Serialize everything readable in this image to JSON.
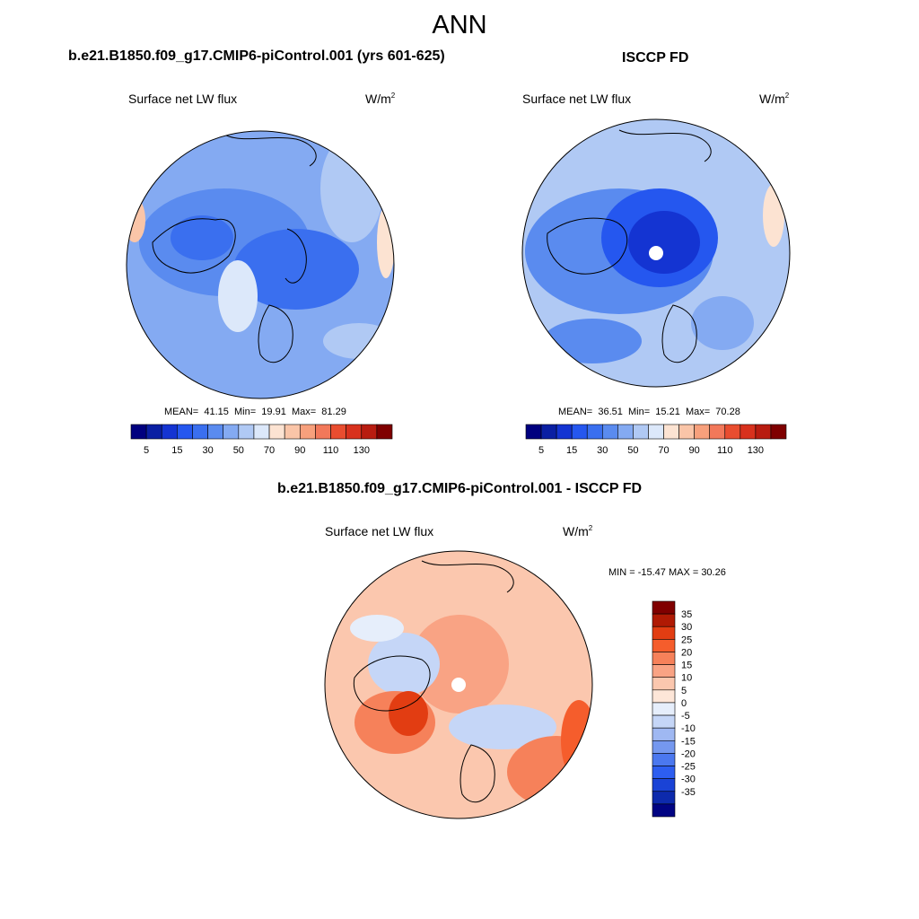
{
  "title": "ANN",
  "colors": {
    "sequential": [
      "#00007f",
      "#0a1fa3",
      "#1434d2",
      "#2557ef",
      "#3a6fef",
      "#5a8bef",
      "#84aaf2",
      "#b0c9f4",
      "#dce8fa",
      "#fce3d2",
      "#fac5a8",
      "#f7a07c",
      "#f2785a",
      "#e94d2f",
      "#d8311d",
      "#b81c10",
      "#7f0000"
    ],
    "diverging": [
      "#800000",
      "#b01a04",
      "#e23d12",
      "#f55d2c",
      "#f6815a",
      "#f9a384",
      "#fbc7ae",
      "#fde6d8",
      "#e6eefb",
      "#c5d6f7",
      "#9fb8f2",
      "#7598ef",
      "#4b78ef",
      "#2d5ef0",
      "#1a43d6",
      "#0d2aac",
      "#010483"
    ],
    "land_outline": "#000000"
  },
  "panels": {
    "top_left": {
      "case_title": "b.e21.B1850.f09_g17.CMIP6-piControl.001 (yrs 601-625)",
      "variable": "Surface net LW flux",
      "units": "W/m",
      "units_sup": "2",
      "mean_label": "MEAN=",
      "mean": "41.15",
      "min_label": "Min=",
      "min": "19.91",
      "max_label": "Max=",
      "max": "81.29",
      "colorbar_ticks": [
        "5",
        "15",
        "30",
        "50",
        "70",
        "90",
        "110",
        "130"
      ]
    },
    "top_right": {
      "case_title": "ISCCP FD",
      "variable": "Surface net LW flux",
      "units": "W/m",
      "units_sup": "2",
      "mean_label": "MEAN=",
      "mean": "36.51",
      "min_label": "Min=",
      "min": "15.21",
      "max_label": "Max=",
      "max": "70.28",
      "colorbar_ticks": [
        "5",
        "15",
        "30",
        "50",
        "70",
        "90",
        "110",
        "130"
      ]
    },
    "bottom": {
      "case_title": "b.e21.B1850.f09_g17.CMIP6-piControl.001 - ISCCP FD",
      "variable": "Surface net LW flux",
      "units": "W/m",
      "units_sup": "2",
      "minmax": "MIN = -15.47 MAX =  30.26",
      "colorbar_ticks": [
        "35",
        "30",
        "25",
        "20",
        "15",
        "10",
        "5",
        "0",
        "-5",
        "-10",
        "-15",
        "-20",
        "-25",
        "-30",
        "-35"
      ]
    }
  }
}
